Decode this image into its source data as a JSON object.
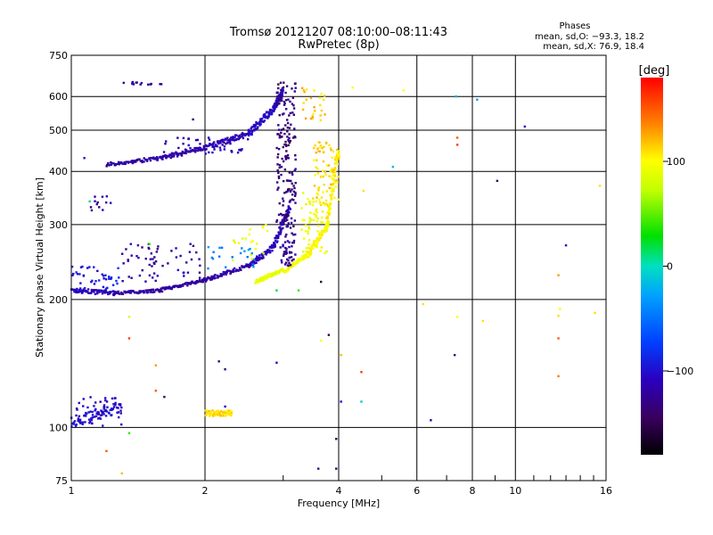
{
  "chart_data": {
    "type": "scatter",
    "title": "Tromsø 20121207 08:10:00–08:11:43",
    "subtitle": "RwPretec (8p)",
    "xlabel": "Frequency [MHz]",
    "ylabel": "Stationary phase Virtual Height [km]",
    "x_scale": "log2",
    "y_scale": "log",
    "xlim": [
      1,
      16
    ],
    "ylim": [
      75,
      750
    ],
    "x_ticks": [
      1,
      2,
      4,
      6,
      8,
      10,
      16
    ],
    "x_tick_labels": [
      "1",
      "2",
      "4",
      "6",
      "8",
      "10",
      "16"
    ],
    "y_ticks": [
      75,
      100,
      200,
      300,
      400,
      500,
      600,
      750
    ],
    "y_tick_labels": [
      "75",
      "100",
      "200",
      "300",
      "400",
      "500",
      "600",
      "750"
    ],
    "grid": true,
    "legend": {
      "title": "Phases",
      "lines": [
        "mean, sd,O: −93.3, 18.2",
        "mean, sd,X: 76.9, 18.4"
      ],
      "placement": "top-right"
    },
    "colorbar": {
      "label": "[deg]",
      "range": [
        -180,
        180
      ],
      "ticks": [
        100,
        0,
        -100
      ],
      "tick_labels": [
        "100",
        "0",
        "−100"
      ],
      "colormap": "black-purple-blue-cyan-green-yellow-orange-red"
    },
    "traces": [
      {
        "x": [
          1.0,
          1.25
        ],
        "y": [
          210,
          207
        ],
        "c": -110,
        "jitter": 0.012
      },
      {
        "x": [
          1.25,
          1.6
        ],
        "y": [
          207,
          210
        ],
        "c": -120,
        "jitter": 0.008
      },
      {
        "x": [
          1.6,
          2.0
        ],
        "y": [
          211,
          222
        ],
        "c": -120,
        "jitter": 0.008
      },
      {
        "x": [
          2.0,
          2.5
        ],
        "y": [
          222,
          240
        ],
        "c": -118,
        "jitter": 0.01
      },
      {
        "x": [
          2.5,
          2.85
        ],
        "y": [
          240,
          265
        ],
        "c": -110,
        "jitter": 0.015
      },
      {
        "x": [
          2.85,
          3.1
        ],
        "y": [
          265,
          330
        ],
        "c": -112,
        "jitter": 0.02
      },
      {
        "x": [
          2.6,
          3.0
        ],
        "y": [
          220,
          235
        ],
        "c": 90,
        "jitter": 0.01
      },
      {
        "x": [
          3.0,
          3.4
        ],
        "y": [
          232,
          255
        ],
        "c": 95,
        "jitter": 0.01
      },
      {
        "x": [
          3.4,
          3.8
        ],
        "y": [
          255,
          300
        ],
        "c": 100,
        "jitter": 0.02
      },
      {
        "x": [
          3.75,
          4.0
        ],
        "y": [
          300,
          450
        ],
        "c": 105,
        "jitter": 0.04
      },
      {
        "x": [
          1.2,
          1.6
        ],
        "y": [
          415,
          430
        ],
        "c": -120,
        "jitter": 0.01
      },
      {
        "x": [
          1.6,
          2.0
        ],
        "y": [
          430,
          455
        ],
        "c": -118,
        "jitter": 0.012
      },
      {
        "x": [
          2.0,
          2.5
        ],
        "y": [
          455,
          490
        ],
        "c": -112,
        "jitter": 0.015
      },
      {
        "x": [
          2.5,
          2.85
        ],
        "y": [
          490,
          560
        ],
        "c": -105,
        "jitter": 0.02
      },
      {
        "x": [
          2.85,
          3.0
        ],
        "y": [
          560,
          620
        ],
        "c": -108,
        "jitter": 0.02
      },
      {
        "x": [
          1.0,
          1.3
        ],
        "y": [
          103,
          112
        ],
        "c": -100,
        "jitter": 0.03
      },
      {
        "x": [
          2.0,
          2.3
        ],
        "y": [
          108,
          108
        ],
        "c": 110,
        "jitter": 0.015
      }
    ],
    "clusters": [
      {
        "x": [
          1.0,
          1.3
        ],
        "y": [
          210,
          240
        ],
        "c": -95,
        "n": 40
      },
      {
        "x": [
          1.3,
          2.0
        ],
        "y": [
          220,
          270
        ],
        "c": -120,
        "n": 60
      },
      {
        "x": [
          1.6,
          2.5
        ],
        "y": [
          440,
          480
        ],
        "c": -115,
        "n": 40
      },
      {
        "x": [
          2.9,
          3.2
        ],
        "y": [
          300,
          650
        ],
        "c": -135,
        "n": 170
      },
      {
        "x": [
          2.95,
          3.2
        ],
        "y": [
          240,
          300
        ],
        "c": -125,
        "n": 50
      },
      {
        "x": [
          3.3,
          3.8
        ],
        "y": [
          250,
          360
        ],
        "c": 95,
        "n": 60
      },
      {
        "x": [
          3.5,
          4.0
        ],
        "y": [
          330,
          470
        ],
        "c": 110,
        "n": 80
      },
      {
        "x": [
          3.3,
          3.75
        ],
        "y": [
          520,
          630
        ],
        "c": 115,
        "n": 25
      },
      {
        "x": [
          2.3,
          2.8
        ],
        "y": [
          240,
          300
        ],
        "c": 90,
        "n": 20
      },
      {
        "x": [
          2.0,
          2.6
        ],
        "y": [
          230,
          270
        ],
        "c": -40,
        "n": 20
      },
      {
        "x": [
          1.0,
          1.3
        ],
        "y": [
          100,
          118
        ],
        "c": -110,
        "n": 40
      },
      {
        "x": [
          1.3,
          1.6
        ],
        "y": [
          640,
          650
        ],
        "c": -120,
        "n": 15
      },
      {
        "x": [
          1.1,
          1.25
        ],
        "y": [
          320,
          350
        ],
        "c": -120,
        "n": 12
      }
    ],
    "points": [
      {
        "x": 1.35,
        "y": 182,
        "c": 80
      },
      {
        "x": 1.35,
        "y": 162,
        "c": 160
      },
      {
        "x": 1.35,
        "y": 97,
        "c": 40
      },
      {
        "x": 1.3,
        "y": 78,
        "c": 120
      },
      {
        "x": 1.2,
        "y": 88,
        "c": 150
      },
      {
        "x": 1.55,
        "y": 140,
        "c": 130
      },
      {
        "x": 1.55,
        "y": 122,
        "c": 150
      },
      {
        "x": 1.62,
        "y": 118,
        "c": -140
      },
      {
        "x": 1.88,
        "y": 530,
        "c": -135
      },
      {
        "x": 1.5,
        "y": 270,
        "c": 40
      },
      {
        "x": 2.15,
        "y": 143,
        "c": -130
      },
      {
        "x": 2.22,
        "y": 137,
        "c": -130
      },
      {
        "x": 2.22,
        "y": 112,
        "c": -110
      },
      {
        "x": 2.9,
        "y": 142,
        "c": -110
      },
      {
        "x": 2.9,
        "y": 210,
        "c": 20
      },
      {
        "x": 3.25,
        "y": 210,
        "c": 40
      },
      {
        "x": 3.65,
        "y": 220,
        "c": -160
      },
      {
        "x": 3.65,
        "y": 160,
        "c": 100
      },
      {
        "x": 3.8,
        "y": 165,
        "c": -150
      },
      {
        "x": 3.6,
        "y": 80,
        "c": -130
      },
      {
        "x": 3.95,
        "y": 94,
        "c": -150
      },
      {
        "x": 3.95,
        "y": 80,
        "c": -140
      },
      {
        "x": 4.05,
        "y": 115,
        "c": -100
      },
      {
        "x": 4.05,
        "y": 148,
        "c": 120
      },
      {
        "x": 4.5,
        "y": 135,
        "c": 160
      },
      {
        "x": 4.5,
        "y": 115,
        "c": -10
      },
      {
        "x": 4.55,
        "y": 360,
        "c": 110
      },
      {
        "x": 4.3,
        "y": 630,
        "c": 100
      },
      {
        "x": 5.3,
        "y": 410,
        "c": -20
      },
      {
        "x": 5.6,
        "y": 620,
        "c": 100
      },
      {
        "x": 6.2,
        "y": 195,
        "c": 110
      },
      {
        "x": 6.45,
        "y": 104,
        "c": -120
      },
      {
        "x": 7.3,
        "y": 148,
        "c": -130
      },
      {
        "x": 7.4,
        "y": 480,
        "c": 150
      },
      {
        "x": 7.4,
        "y": 462,
        "c": 160
      },
      {
        "x": 7.35,
        "y": 600,
        "c": -20
      },
      {
        "x": 7.4,
        "y": 182,
        "c": 100
      },
      {
        "x": 8.2,
        "y": 590,
        "c": -30
      },
      {
        "x": 8.45,
        "y": 178,
        "c": 110
      },
      {
        "x": 9.1,
        "y": 380,
        "c": -150
      },
      {
        "x": 10.5,
        "y": 510,
        "c": -100
      },
      {
        "x": 12.5,
        "y": 228,
        "c": 130
      },
      {
        "x": 12.6,
        "y": 190,
        "c": 100
      },
      {
        "x": 12.5,
        "y": 183,
        "c": 110
      },
      {
        "x": 12.5,
        "y": 162,
        "c": 150
      },
      {
        "x": 12.5,
        "y": 132,
        "c": 140
      },
      {
        "x": 13.0,
        "y": 268,
        "c": -100
      },
      {
        "x": 15.1,
        "y": 186,
        "c": 110
      },
      {
        "x": 15.5,
        "y": 370,
        "c": 110
      },
      {
        "x": 1.07,
        "y": 430,
        "c": -100
      },
      {
        "x": 1.1,
        "y": 340,
        "c": 10
      }
    ]
  }
}
